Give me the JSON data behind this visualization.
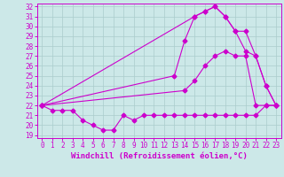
{
  "title": "",
  "xlabel": "Windchill (Refroidissement éolien,°C)",
  "ylabel": "",
  "bg_color": "#cce8e8",
  "line_color": "#cc00cc",
  "xlim": [
    -0.5,
    23.5
  ],
  "ylim": [
    18.7,
    32.3
  ],
  "xticks": [
    0,
    1,
    2,
    3,
    4,
    5,
    6,
    7,
    8,
    9,
    10,
    11,
    12,
    13,
    14,
    15,
    16,
    17,
    18,
    19,
    20,
    21,
    22,
    23
  ],
  "yticks": [
    19,
    20,
    21,
    22,
    23,
    24,
    25,
    26,
    27,
    28,
    29,
    30,
    31,
    32
  ],
  "line1_x": [
    0,
    1,
    2,
    3,
    4,
    5,
    6,
    7,
    8,
    9,
    10,
    11,
    12,
    13,
    14,
    15,
    16,
    17,
    18,
    19,
    20,
    21,
    22,
    23
  ],
  "line1_y": [
    22,
    21.5,
    21.5,
    21.5,
    20.5,
    20,
    19.5,
    19.5,
    21,
    20.5,
    21,
    21,
    21,
    21,
    21,
    21,
    21,
    21,
    21,
    21,
    21,
    21,
    22,
    22
  ],
  "line2_x": [
    0,
    15,
    16,
    17,
    18,
    19,
    20,
    21,
    22,
    23
  ],
  "line2_y": [
    22,
    31,
    31.5,
    32,
    31,
    29.5,
    27.5,
    27,
    24,
    22
  ],
  "line3_x": [
    0,
    13,
    14,
    15,
    16,
    17,
    18,
    19,
    20,
    21,
    22,
    23
  ],
  "line3_y": [
    22,
    25,
    28.5,
    31,
    31.5,
    32,
    31,
    29.5,
    29.5,
    27,
    24,
    22
  ],
  "line4_x": [
    0,
    14,
    15,
    16,
    17,
    18,
    19,
    20,
    21,
    22,
    23
  ],
  "line4_y": [
    22,
    23.5,
    24.5,
    26,
    27,
    27.5,
    27,
    27,
    22,
    22,
    22
  ],
  "grid_color": "#aacccc",
  "font_color": "#cc00cc",
  "tick_fontsize": 5.5,
  "label_fontsize": 6.5
}
